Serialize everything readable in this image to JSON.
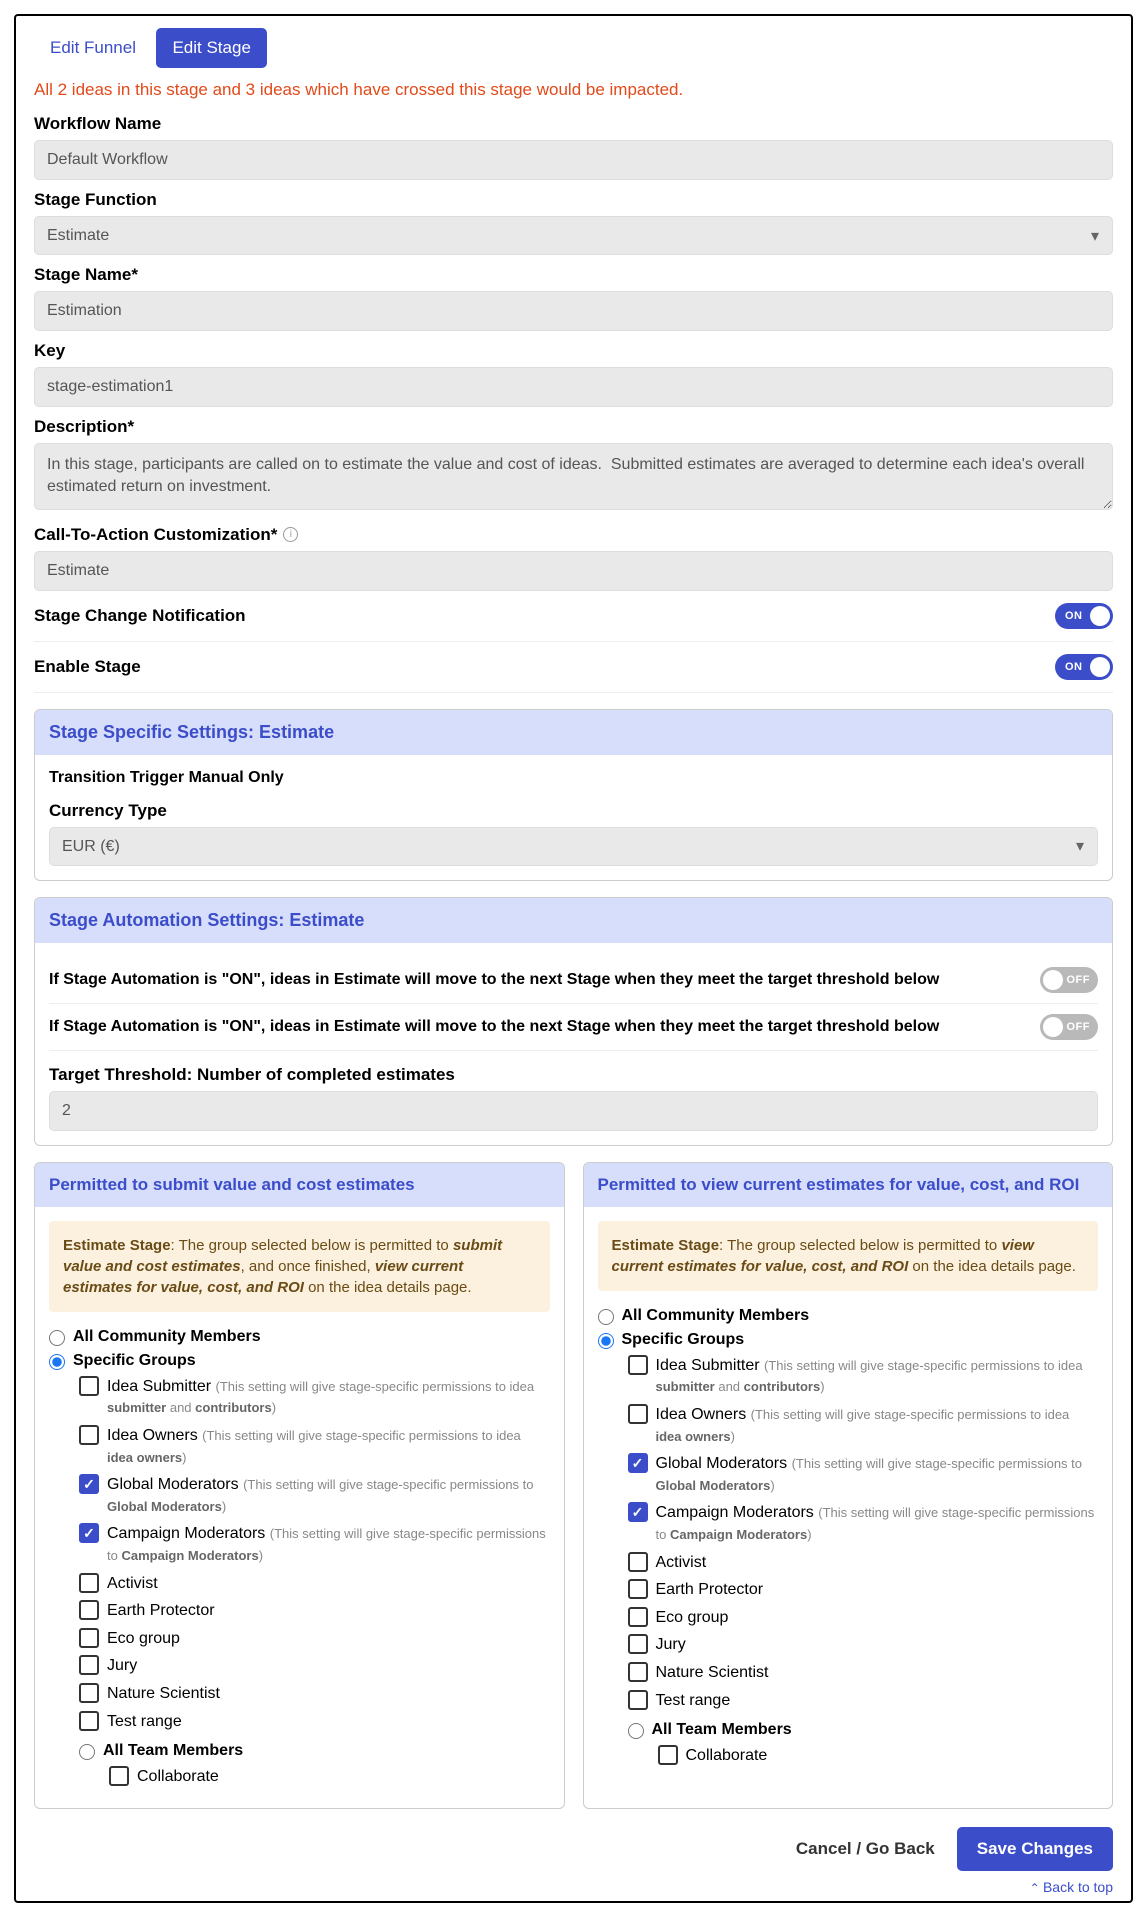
{
  "tabs": {
    "edit_funnel": "Edit Funnel",
    "edit_stage": "Edit Stage"
  },
  "impact_warning": "All 2 ideas in this stage and 3 ideas which have crossed this stage would be impacted.",
  "fields": {
    "workflow_name": {
      "label": "Workflow Name",
      "value": "Default Workflow"
    },
    "stage_function": {
      "label": "Stage Function",
      "value": "Estimate"
    },
    "stage_name": {
      "label": "Stage Name*",
      "value": "Estimation"
    },
    "key": {
      "label": "Key",
      "value": "stage-estimation1"
    },
    "description": {
      "label": "Description*",
      "value": "In this stage, participants are called on to estimate the value and cost of ideas.  Submitted estimates are averaged to determine each idea's overall estimated return on investment."
    },
    "cta": {
      "label": "Call-To-Action Customization*",
      "value": "Estimate"
    }
  },
  "toggles": {
    "stage_change_notification": {
      "label": "Stage Change Notification",
      "on": true
    },
    "enable_stage": {
      "label": "Enable Stage",
      "on": true
    }
  },
  "specific_panel": {
    "title": "Stage Specific Settings: Estimate",
    "transition": "Transition Trigger Manual Only",
    "currency_label": "Currency Type",
    "currency_value": "EUR (€)"
  },
  "automation_panel": {
    "title": "Stage Automation Settings: Estimate",
    "row1": "If Stage Automation is \"ON\", ideas in Estimate will move to the next Stage when they meet the target threshold below",
    "row1_on": false,
    "row2": "If Stage Automation is \"ON\", ideas in Estimate will move to the next Stage when they meet the target threshold below",
    "row2_on": false,
    "threshold_label": "Target Threshold: Number of completed estimates",
    "threshold_value": "2"
  },
  "perm_submit": {
    "title": "Permitted to submit value and cost estimates",
    "notice_lead": "Estimate Stage",
    "notice_html": ": The group selected below is permitted to <strong><em>submit value and cost estimates</em></strong>, and once finished, <strong><em>view current estimates for value, cost, and ROI</em></strong> on the idea details page.",
    "all_label": "All Community Members",
    "specific_label": "Specific Groups",
    "selected": "specific",
    "groups": [
      {
        "label": "Idea Submitter",
        "checked": false,
        "hint_html": "(This setting will give stage-specific permissions to idea <strong>submitter</strong> and <strong>contributors</strong>)"
      },
      {
        "label": "Idea Owners",
        "checked": false,
        "hint_html": "(This setting will give stage-specific permissions to idea <strong>idea owners</strong>)"
      },
      {
        "label": "Global Moderators",
        "checked": true,
        "hint_html": "(This setting will give stage-specific permissions to <strong>Global Moderators</strong>)"
      },
      {
        "label": "Campaign Moderators",
        "checked": true,
        "hint_html": "(This setting will give stage-specific permissions to <strong>Campaign Moderators</strong>)"
      },
      {
        "label": "Activist",
        "checked": false
      },
      {
        "label": "Earth Protector",
        "checked": false
      },
      {
        "label": "Eco group",
        "checked": false
      },
      {
        "label": "Jury",
        "checked": false
      },
      {
        "label": "Nature Scientist",
        "checked": false
      },
      {
        "label": "Test range",
        "checked": false
      }
    ],
    "team_label": "All Team Members",
    "team_sub": {
      "label": "Collaborate",
      "checked": false
    }
  },
  "perm_view": {
    "title": "Permitted to view current estimates for value, cost, and ROI",
    "notice_lead": "Estimate Stage",
    "notice_html": ": The group selected below is permitted to <strong><em>view current estimates for value, cost, and ROI</em></strong> on the idea details page.",
    "all_label": "All Community Members",
    "specific_label": "Specific Groups",
    "selected": "specific",
    "groups": [
      {
        "label": "Idea Submitter",
        "checked": false,
        "hint_html": "(This setting will give stage-specific permissions to idea <strong>submitter</strong> and <strong>contributors</strong>)"
      },
      {
        "label": "Idea Owners",
        "checked": false,
        "hint_html": "(This setting will give stage-specific permissions to idea <strong>idea owners</strong>)"
      },
      {
        "label": "Global Moderators",
        "checked": true,
        "hint_html": "(This setting will give stage-specific permissions to <strong>Global Moderators</strong>)"
      },
      {
        "label": "Campaign Moderators",
        "checked": true,
        "hint_html": "(This setting will give stage-specific permissions to <strong>Campaign Moderators</strong>)"
      },
      {
        "label": "Activist",
        "checked": false
      },
      {
        "label": "Earth Protector",
        "checked": false
      },
      {
        "label": "Eco group",
        "checked": false
      },
      {
        "label": "Jury",
        "checked": false
      },
      {
        "label": "Nature Scientist",
        "checked": false
      },
      {
        "label": "Test range",
        "checked": false
      }
    ],
    "team_label": "All Team Members",
    "team_sub": {
      "label": "Collaborate",
      "checked": false
    }
  },
  "footer": {
    "cancel": "Cancel / Go Back",
    "save": "Save Changes",
    "back_top": "Back to top"
  },
  "toggle_text": {
    "on": "ON",
    "off": "OFF"
  }
}
